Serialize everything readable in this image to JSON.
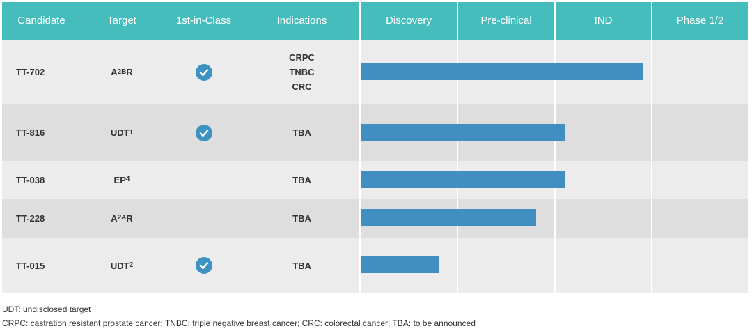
{
  "header": {
    "candidate": "Candidate",
    "target": "Target",
    "first_in_class": "1st-in-Class",
    "indications": "Indications",
    "stages": [
      "Discovery",
      "Pre-clinical",
      "IND",
      "Phase 1/2"
    ]
  },
  "rows": [
    {
      "candidate": "TT-702",
      "target": {
        "base": "A",
        "sub": "2B",
        "suffix": "R"
      },
      "first_in_class": true,
      "indications": [
        "CRPC",
        "TNBC",
        "CRC"
      ]
    },
    {
      "candidate": "TT-816",
      "target": {
        "base": "UDT",
        "sub": "1",
        "suffix": ""
      },
      "first_in_class": true,
      "indications": [
        "TBA"
      ]
    },
    {
      "candidate": "TT-038",
      "target": {
        "base": "EP",
        "sub": "4",
        "suffix": ""
      },
      "first_in_class": false,
      "indications": [
        "TBA"
      ]
    },
    {
      "candidate": "TT-228",
      "target": {
        "base": "A",
        "sub": "2A",
        "suffix": "R"
      },
      "first_in_class": false,
      "indications": [
        "TBA"
      ]
    },
    {
      "candidate": "TT-015",
      "target": {
        "base": "UDT",
        "sub": "2",
        "suffix": ""
      },
      "first_in_class": true,
      "indications": [
        "TBA"
      ]
    }
  ],
  "chart_data": {
    "type": "bar",
    "categories": [
      "TT-702",
      "TT-816",
      "TT-038",
      "TT-228",
      "TT-015"
    ],
    "x_axis_stages": [
      "Discovery",
      "Pre-clinical",
      "IND",
      "Phase 1/2"
    ],
    "values": [
      2.9,
      2.1,
      2.1,
      1.8,
      0.8
    ],
    "xlim": [
      0,
      4
    ]
  },
  "colors": {
    "header_bg": "#46bdbd",
    "bar": "#418fc0",
    "check": "#3d92c2",
    "row_light": "#ececec",
    "row_dark": "#dedede"
  },
  "footnotes": {
    "udt": "UDT: undisclosed target",
    "abbreviations": "CRPC: castration resistant prostate cancer; TNBC: triple negative breast cancer; CRC: colorectal cancer; TBA: to be announced"
  }
}
